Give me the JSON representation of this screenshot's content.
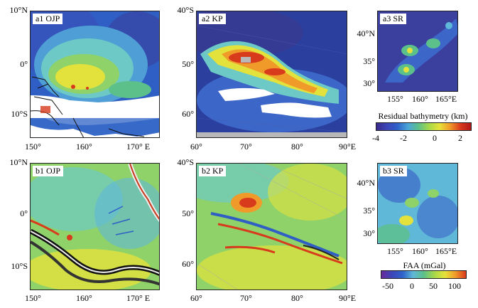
{
  "panels": {
    "a1": {
      "label": "a1 OJP",
      "y_ticks": [
        "10°N",
        "0°",
        "10°S"
      ],
      "x_ticks": [
        "150°",
        "160°",
        "170° E"
      ]
    },
    "a2": {
      "label": "a2 KP",
      "y_ticks": [
        "40°S",
        "50°",
        "60°"
      ],
      "x_ticks": [
        "60°",
        "70°",
        "80°",
        "90°E"
      ]
    },
    "a3": {
      "label": "a3 SR",
      "y_ticks": [
        "40°N",
        "35°",
        "30°"
      ],
      "x_ticks": [
        "155°",
        "160°",
        "165°E"
      ]
    },
    "b1": {
      "label": "b1 OJP",
      "y_ticks": [
        "10°N",
        "0°",
        "10°S"
      ],
      "x_ticks": [
        "150°",
        "160°",
        "170° E"
      ]
    },
    "b2": {
      "label": "b2 KP",
      "y_ticks": [
        "40°S",
        "50°",
        "60°"
      ],
      "x_ticks": [
        "60°",
        "70°",
        "80°",
        "90°E"
      ]
    },
    "b3": {
      "label": "b3 SR",
      "y_ticks": [
        "40°N",
        "35°",
        "30°"
      ],
      "x_ticks": [
        "155°",
        "160°",
        "165°E"
      ]
    }
  },
  "colorbars": {
    "bathy": {
      "title": "Residual bathymetry (km)",
      "ticks": [
        "-4",
        "-2",
        "0",
        "2"
      ]
    },
    "faa": {
      "title": "FAA (mGal)",
      "ticks": [
        "-50",
        "0",
        "50",
        "100"
      ]
    }
  },
  "colors": {
    "deep": "#3a2a8c",
    "low": "#2f62c9",
    "mid": "#5fb8d8",
    "green": "#5cc08a",
    "yellow": "#e6e23a",
    "orange": "#f09a2a",
    "high": "#d83a1c",
    "land": "#ffffff"
  }
}
